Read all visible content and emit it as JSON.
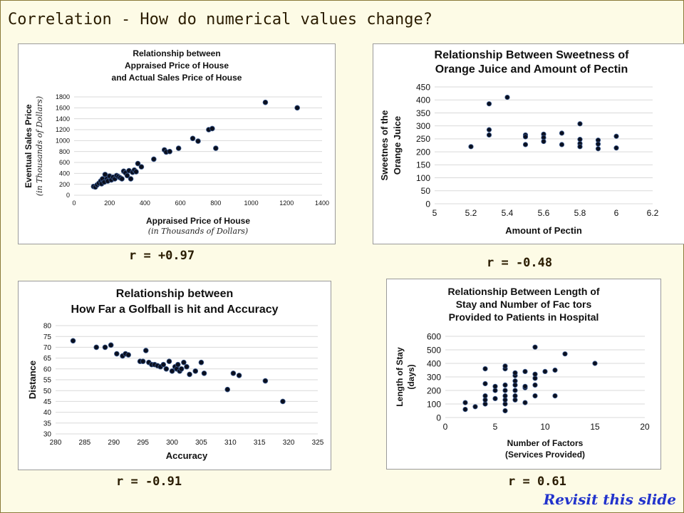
{
  "slide": {
    "title": "Correlation - How do numerical values change?",
    "revisit_link": "Revisit this slide"
  },
  "colors": {
    "marker": "#0a0f1e",
    "marker_edge": "#3a5a90",
    "grid": "#d9d9d9",
    "title_text": "#2a1c00",
    "link": "#2233cc"
  },
  "chart_data": [
    {
      "type": "scatter",
      "title_lines": [
        "Relationship between",
        "Appraised Price of House",
        "and Actual Sales Price of House"
      ],
      "xlabel": "Appraised Price of House",
      "xlabel_sub": "(in Thousands of Dollars)",
      "ylabel": "Eventual Sales Price",
      "ylabel_sub": "(in Thousands of Dollars)",
      "xlim": [
        0,
        1400
      ],
      "ylim": [
        0,
        1800
      ],
      "xticks": [
        0,
        200,
        400,
        600,
        800,
        1000,
        1200,
        1400
      ],
      "yticks": [
        0,
        200,
        400,
        600,
        800,
        1000,
        1200,
        1400,
        1600,
        1800
      ],
      "grid": "horizontal",
      "r_label": "r = +0.97",
      "points": [
        [
          110,
          160
        ],
        [
          120,
          150
        ],
        [
          130,
          190
        ],
        [
          140,
          220
        ],
        [
          150,
          260
        ],
        [
          155,
          210
        ],
        [
          160,
          300
        ],
        [
          170,
          240
        ],
        [
          175,
          380
        ],
        [
          185,
          300
        ],
        [
          190,
          260
        ],
        [
          200,
          350
        ],
        [
          210,
          280
        ],
        [
          220,
          330
        ],
        [
          230,
          300
        ],
        [
          240,
          360
        ],
        [
          250,
          340
        ],
        [
          260,
          320
        ],
        [
          270,
          300
        ],
        [
          280,
          440
        ],
        [
          290,
          410
        ],
        [
          300,
          360
        ],
        [
          310,
          450
        ],
        [
          320,
          300
        ],
        [
          330,
          420
        ],
        [
          340,
          460
        ],
        [
          350,
          430
        ],
        [
          360,
          580
        ],
        [
          380,
          520
        ],
        [
          450,
          660
        ],
        [
          510,
          830
        ],
        [
          520,
          790
        ],
        [
          540,
          800
        ],
        [
          590,
          860
        ],
        [
          670,
          1040
        ],
        [
          700,
          990
        ],
        [
          760,
          1200
        ],
        [
          780,
          1220
        ],
        [
          800,
          860
        ],
        [
          1080,
          1700
        ],
        [
          1260,
          1600
        ]
      ]
    },
    {
      "type": "scatter",
      "title_lines": [
        "Relationship Between Sweetness of",
        "Orange Juice and Amount of Pectin"
      ],
      "xlabel": "Amount of Pectin",
      "ylabel_lines": [
        "Sweetnes of the",
        "Orange Juice"
      ],
      "xlim": [
        5,
        6.2
      ],
      "ylim": [
        0,
        450
      ],
      "xticks": [
        5,
        5.2,
        5.4,
        5.6,
        5.8,
        6,
        6.2
      ],
      "yticks": [
        0,
        50,
        100,
        150,
        200,
        250,
        300,
        350,
        400,
        450
      ],
      "grid": "horizontal",
      "r_label": "r = -0.48",
      "points": [
        [
          5.2,
          220
        ],
        [
          5.3,
          385
        ],
        [
          5.3,
          285
        ],
        [
          5.3,
          265
        ],
        [
          5.4,
          410
        ],
        [
          5.5,
          265
        ],
        [
          5.5,
          258
        ],
        [
          5.5,
          228
        ],
        [
          5.6,
          268
        ],
        [
          5.6,
          255
        ],
        [
          5.6,
          240
        ],
        [
          5.7,
          272
        ],
        [
          5.7,
          228
        ],
        [
          5.8,
          308
        ],
        [
          5.8,
          248
        ],
        [
          5.8,
          232
        ],
        [
          5.8,
          220
        ],
        [
          5.9,
          245
        ],
        [
          5.9,
          230
        ],
        [
          5.9,
          212
        ],
        [
          6.0,
          260
        ],
        [
          6.0,
          215
        ]
      ]
    },
    {
      "type": "scatter",
      "title_lines": [
        "Relationship between",
        "How Far a Golfball is hit and Accuracy"
      ],
      "xlabel": "Accuracy",
      "ylabel": "Distance",
      "xlim": [
        280,
        325
      ],
      "ylim": [
        30,
        80
      ],
      "xticks": [
        280,
        285,
        290,
        295,
        300,
        305,
        310,
        315,
        320,
        325
      ],
      "yticks": [
        30,
        35,
        40,
        45,
        50,
        55,
        60,
        65,
        70,
        75,
        80
      ],
      "grid": "horizontal",
      "r_label": "r = -0.91",
      "points": [
        [
          283,
          73
        ],
        [
          287,
          70
        ],
        [
          288.5,
          70
        ],
        [
          289.5,
          71
        ],
        [
          290.5,
          67
        ],
        [
          291.5,
          66
        ],
        [
          292,
          67
        ],
        [
          292.5,
          66.5
        ],
        [
          294.5,
          63.5
        ],
        [
          295,
          63.5
        ],
        [
          295.5,
          68.5
        ],
        [
          296,
          63
        ],
        [
          296.5,
          62
        ],
        [
          297,
          62
        ],
        [
          297.5,
          61.5
        ],
        [
          298,
          61
        ],
        [
          298.5,
          62
        ],
        [
          299,
          60
        ],
        [
          299.5,
          63.5
        ],
        [
          300,
          59
        ],
        [
          300.5,
          61
        ],
        [
          300.8,
          60
        ],
        [
          301,
          62
        ],
        [
          301.3,
          59
        ],
        [
          301.6,
          60
        ],
        [
          302,
          63
        ],
        [
          302.5,
          61
        ],
        [
          303,
          57.5
        ],
        [
          304,
          59
        ],
        [
          305,
          63
        ],
        [
          305.5,
          58
        ],
        [
          309.5,
          50.5
        ],
        [
          310.5,
          58
        ],
        [
          311.5,
          57
        ],
        [
          316,
          54.5
        ],
        [
          319,
          45
        ]
      ]
    },
    {
      "type": "scatter",
      "title_lines": [
        "Relationship Between Length of",
        "Stay and Number of Fac  tors",
        "Provided to Patients in Hospital"
      ],
      "xlabel_lines": [
        "Number of Factors",
        "(Services Provided)"
      ],
      "ylabel_lines": [
        "Length of Stay",
        "(days)"
      ],
      "xlim": [
        0,
        20
      ],
      "ylim": [
        0,
        600
      ],
      "xticks": [
        0,
        5,
        10,
        15,
        20
      ],
      "yticks": [
        0,
        100,
        200,
        300,
        400,
        500,
        600
      ],
      "grid": "horizontal",
      "r_label": "r = 0.61",
      "points": [
        [
          2,
          60
        ],
        [
          2,
          110
        ],
        [
          3,
          80
        ],
        [
          4,
          100
        ],
        [
          4,
          130
        ],
        [
          4,
          160
        ],
        [
          4,
          250
        ],
        [
          4,
          360
        ],
        [
          5,
          140
        ],
        [
          5,
          200
        ],
        [
          5,
          230
        ],
        [
          6,
          50
        ],
        [
          6,
          100
        ],
        [
          6,
          130
        ],
        [
          6,
          160
        ],
        [
          6,
          200
        ],
        [
          6,
          240
        ],
        [
          6,
          360
        ],
        [
          6,
          380
        ],
        [
          7,
          130
        ],
        [
          7,
          160
        ],
        [
          7,
          200
        ],
        [
          7,
          240
        ],
        [
          7,
          270
        ],
        [
          7,
          310
        ],
        [
          7,
          330
        ],
        [
          8,
          110
        ],
        [
          8,
          220
        ],
        [
          8,
          230
        ],
        [
          8,
          340
        ],
        [
          9,
          160
        ],
        [
          9,
          240
        ],
        [
          9,
          290
        ],
        [
          9,
          320
        ],
        [
          9,
          520
        ],
        [
          10,
          340
        ],
        [
          11,
          160
        ],
        [
          11,
          350
        ],
        [
          12,
          470
        ],
        [
          15,
          400
        ]
      ]
    }
  ]
}
